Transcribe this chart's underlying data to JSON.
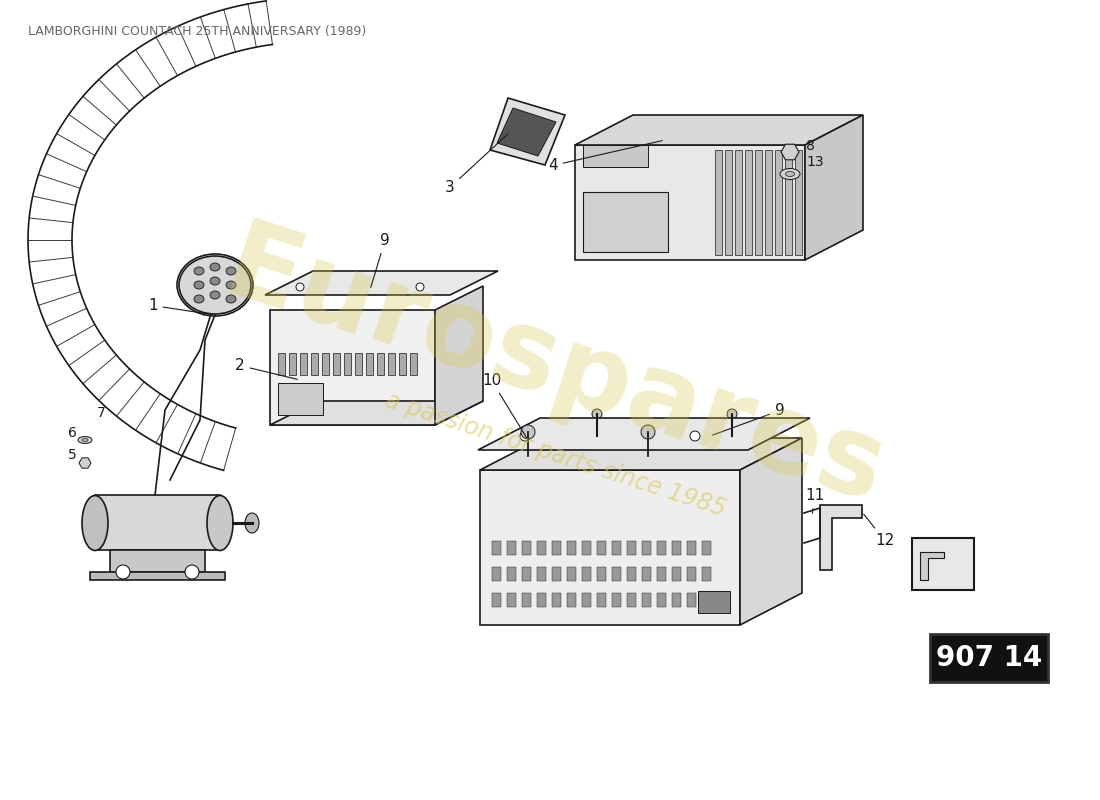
{
  "title": "LAMBORGHINI COUNTACH 25TH ANNIVERSARY (1989)",
  "part_number_box": "907 14",
  "background_color": "#ffffff",
  "line_color": "#1a1a1a",
  "watermark_text1": "Eurospares",
  "watermark_text2": "a passion for parts since 1985",
  "watermark_color": "#d4c84a",
  "fig_width": 11.0,
  "fig_height": 8.0,
  "dpi": 100
}
